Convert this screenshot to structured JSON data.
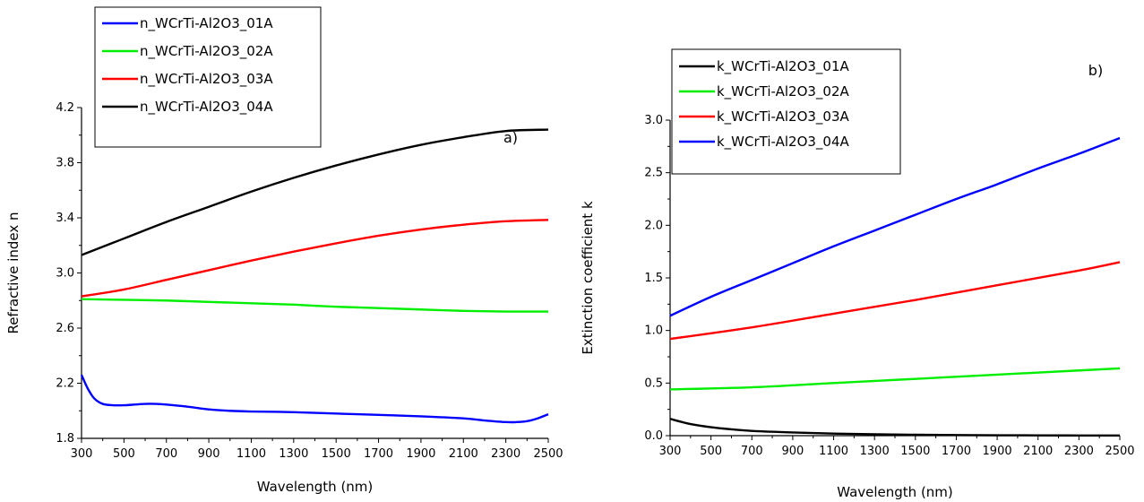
{
  "chart_data": [
    {
      "type": "line",
      "panel_label": "a)",
      "xlabel": "Wavelength (nm)",
      "ylabel": "Refractive index n",
      "xlim": [
        300,
        2500
      ],
      "ylim": [
        1.8,
        4.2
      ],
      "xticks": [
        300,
        500,
        700,
        900,
        1100,
        1300,
        1500,
        1700,
        1900,
        2100,
        2300,
        2500
      ],
      "yticks": [
        1.8,
        2.2,
        2.6,
        3.0,
        3.4,
        3.8,
        4.2
      ],
      "ytick_labels": [
        "1.8",
        "2.2",
        "2.6",
        "3.0",
        "3.4",
        "3.8",
        "4.2"
      ],
      "legend_position": "top-left",
      "series": [
        {
          "name": "n_WCrTi-Al2O3_01A",
          "color": "#0000ff",
          "x": [
            300,
            330,
            360,
            400,
            450,
            500,
            550,
            600,
            650,
            700,
            800,
            900,
            1000,
            1100,
            1300,
            1500,
            1700,
            1900,
            2100,
            2200,
            2300,
            2350,
            2400,
            2450,
            2500
          ],
          "y": [
            2.26,
            2.16,
            2.09,
            2.05,
            2.04,
            2.04,
            2.045,
            2.05,
            2.05,
            2.045,
            2.03,
            2.01,
            2.0,
            1.995,
            1.99,
            1.98,
            1.97,
            1.96,
            1.945,
            1.93,
            1.918,
            1.918,
            1.925,
            1.945,
            1.975
          ]
        },
        {
          "name": "n_WCrTi-Al2O3_02A",
          "color": "#00ee00",
          "x": [
            300,
            500,
            700,
            900,
            1100,
            1300,
            1500,
            1700,
            1900,
            2100,
            2300,
            2500
          ],
          "y": [
            2.81,
            2.805,
            2.8,
            2.79,
            2.78,
            2.77,
            2.755,
            2.745,
            2.735,
            2.725,
            2.72,
            2.72
          ]
        },
        {
          "name": "n_WCrTi-Al2O3_03A",
          "color": "#ff0000",
          "x": [
            300,
            500,
            700,
            900,
            1100,
            1300,
            1500,
            1700,
            1900,
            2100,
            2300,
            2500
          ],
          "y": [
            2.83,
            2.88,
            2.95,
            3.02,
            3.09,
            3.155,
            3.215,
            3.27,
            3.315,
            3.35,
            3.375,
            3.385
          ]
        },
        {
          "name": "n_WCrTi-Al2O3_04A",
          "color": "#000000",
          "x": [
            300,
            500,
            700,
            900,
            1100,
            1300,
            1500,
            1700,
            1900,
            2100,
            2300,
            2500
          ],
          "y": [
            3.13,
            3.25,
            3.37,
            3.48,
            3.59,
            3.69,
            3.78,
            3.86,
            3.93,
            3.985,
            4.03,
            4.04
          ]
        }
      ]
    },
    {
      "type": "line",
      "panel_label": "b)",
      "xlabel": "Wavelength (nm)",
      "ylabel": "Extinction coefficient k",
      "xlim": [
        300,
        2500
      ],
      "ylim": [
        0.0,
        3.0
      ],
      "xticks": [
        300,
        500,
        700,
        900,
        1100,
        1300,
        1500,
        1700,
        1900,
        2100,
        2300,
        2500
      ],
      "yticks": [
        0.0,
        0.5,
        1.0,
        1.5,
        2.0,
        2.5,
        3.0
      ],
      "ytick_labels": [
        "0.0",
        "0.5",
        "1.0",
        "1.5",
        "2.0",
        "2.5",
        "3.0"
      ],
      "legend_position": "top-left",
      "series": [
        {
          "name": "k_WCrTi-Al2O3_01A",
          "color": "#000000",
          "x": [
            300,
            400,
            500,
            600,
            700,
            900,
            1100,
            1300,
            1500,
            1700,
            1900,
            2100,
            2300,
            2500
          ],
          "y": [
            0.16,
            0.11,
            0.08,
            0.06,
            0.045,
            0.03,
            0.02,
            0.013,
            0.009,
            0.006,
            0.004,
            0.003,
            0.002,
            0.002
          ]
        },
        {
          "name": "k_WCrTi-Al2O3_02A",
          "color": "#00ee00",
          "x": [
            300,
            700,
            1100,
            1500,
            1900,
            2300,
            2500
          ],
          "y": [
            0.44,
            0.46,
            0.5,
            0.54,
            0.58,
            0.62,
            0.64
          ]
        },
        {
          "name": "k_WCrTi-Al2O3_03A",
          "color": "#ff0000",
          "x": [
            300,
            700,
            1100,
            1500,
            1900,
            2300,
            2500
          ],
          "y": [
            0.92,
            1.03,
            1.16,
            1.29,
            1.43,
            1.57,
            1.65
          ]
        },
        {
          "name": "k_WCrTi-Al2O3_04A",
          "color": "#0000ff",
          "x": [
            300,
            500,
            700,
            900,
            1100,
            1300,
            1500,
            1700,
            1900,
            2100,
            2300,
            2500
          ],
          "y": [
            1.14,
            1.32,
            1.48,
            1.64,
            1.8,
            1.95,
            2.1,
            2.25,
            2.39,
            2.54,
            2.68,
            2.83
          ]
        }
      ]
    }
  ]
}
